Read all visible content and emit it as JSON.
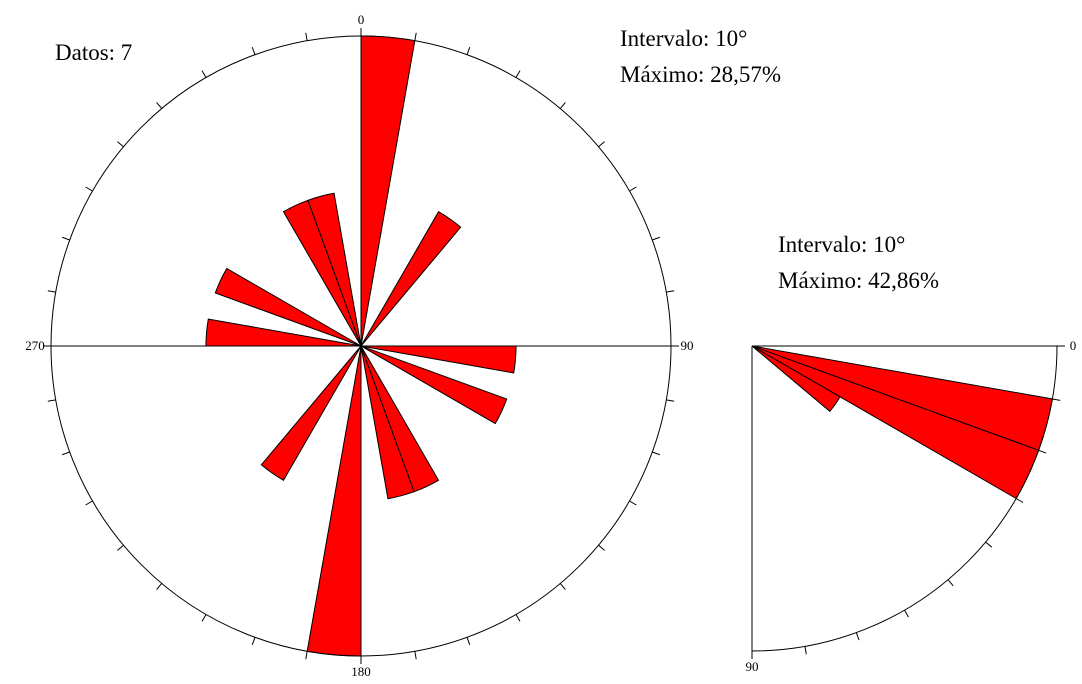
{
  "chart_data": [
    {
      "type": "rose",
      "count_label": "Datos: 7",
      "interval_label": "Intervalo: 10°",
      "max_label": "Máximo: 28,57%",
      "interval": 10,
      "x": [
        0,
        30,
        90,
        110,
        150,
        160
      ],
      "values": [
        28.57,
        14.29,
        14.29,
        14.29,
        14.29,
        14.29
      ],
      "rlim": [
        0,
        28.57
      ],
      "thetalim": [
        0,
        360
      ],
      "zero_direction": "N",
      "bidirectional": true,
      "color": "#ff0000",
      "thetaticks": [
        {
          "value": 0,
          "label": "0"
        },
        {
          "value": 90,
          "label": "90"
        },
        {
          "value": 180,
          "label": "180"
        },
        {
          "value": 270,
          "label": "270"
        }
      ]
    },
    {
      "type": "rose",
      "interval_label": "Intervalo: 10°",
      "max_label": "Máximo: 42,86%",
      "interval": 10,
      "x": [
        10,
        20,
        30
      ],
      "values": [
        42.86,
        42.86,
        14.29
      ],
      "rlim": [
        0,
        42.86
      ],
      "thetalim": [
        0,
        90
      ],
      "zero_direction": "E",
      "bidirectional": false,
      "color": "#ff0000",
      "thetaticks": [
        {
          "value": 0,
          "label": "0"
        },
        {
          "value": 90,
          "label": "90"
        }
      ]
    }
  ]
}
